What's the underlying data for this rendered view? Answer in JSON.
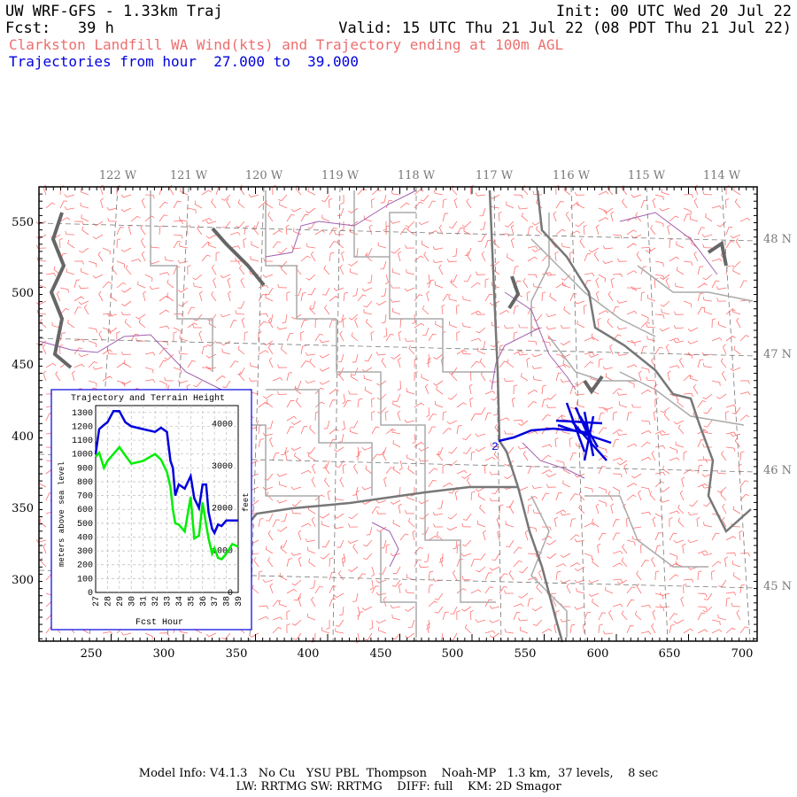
{
  "header": {
    "line1_left": "UW WRF-GFS - 1.33km Traj",
    "line1_right": "Init: 00 UTC Wed 20 Jul 22",
    "line2_left": "Fcst:   39 h",
    "line2_right": "Valid: 15 UTC Thu 21 Jul 22 (08 PDT Thu 21 Jul 22)",
    "line3": "Clarkston Landfill WA Wind(kts) and Trajectory ending at 100m AGL",
    "line4": "Trajectories from hour  27.000 to  39.000"
  },
  "colors": {
    "title_red": "#ee6e6e",
    "trajectory_blue": "#0000dd",
    "wind_barb": "#ff7070",
    "county": "#aaaaaa",
    "state": "#777777",
    "river": "#a060b0",
    "terrain_green": "#00ee00"
  },
  "map": {
    "top_lon_labels": [
      "122 W",
      "121 W",
      "120 W",
      "119 W",
      "118 W",
      "117 W",
      "116 W",
      "115 W",
      "114 W"
    ],
    "right_lat_labels": [
      "48 N",
      "47 N",
      "46 N",
      "45 N"
    ],
    "left_axis_labels": [
      "550",
      "500",
      "450",
      "400",
      "350",
      "300"
    ],
    "bottom_axis_labels": [
      "250",
      "300",
      "350",
      "400",
      "450",
      "500",
      "550",
      "600",
      "650",
      "700"
    ],
    "trajectory_marker": "2"
  },
  "inset": {
    "title": "Trajectory and Terrain Height",
    "xlabel": "Fcst Hour",
    "ylabel_left": "meters above sea level",
    "ylabel_right": "feet",
    "left_ticks": [
      "1300",
      "1200",
      "1100",
      "1000",
      "900",
      "800",
      "700",
      "600",
      "500",
      "400",
      "300",
      "200",
      "100",
      "0"
    ],
    "right_ticks": [
      "4000",
      "3000",
      "2000",
      "1000",
      "0"
    ],
    "x_ticks": [
      "27",
      "28",
      "29",
      "30",
      "31",
      "32",
      "33",
      "34",
      "35",
      "36",
      "37",
      "38",
      "39"
    ]
  },
  "chart_data": {
    "type": "line",
    "title": "Trajectory and Terrain Height",
    "xlabel": "Fcst Hour",
    "ylabel": "meters above sea level",
    "xlim": [
      27,
      39
    ],
    "ylim": [
      0,
      1350
    ],
    "series": [
      {
        "name": "trajectory",
        "color": "#0000dd",
        "x": [
          27,
          27.3,
          27.7,
          28,
          28.5,
          29,
          29.5,
          30,
          31,
          32,
          32.5,
          33,
          33.3,
          33.5,
          33.7,
          34,
          34.5,
          35,
          35.3,
          35.7,
          36,
          36.3,
          36.5,
          36.8,
          37,
          37.3,
          37.6,
          38,
          38.5,
          39
        ],
        "y": [
          1000,
          1180,
          1210,
          1230,
          1310,
          1310,
          1230,
          1200,
          1180,
          1160,
          1190,
          1160,
          950,
          900,
          700,
          780,
          750,
          840,
          680,
          610,
          780,
          780,
          580,
          460,
          430,
          490,
          480,
          520,
          520,
          520
        ]
      },
      {
        "name": "terrain",
        "color": "#00ee00",
        "x": [
          27,
          27.3,
          27.7,
          28,
          28.5,
          29,
          29.5,
          30,
          31,
          32,
          32.5,
          33,
          33.3,
          33.5,
          33.7,
          34,
          34.5,
          35,
          35.3,
          35.7,
          36,
          36.3,
          36.5,
          36.8,
          37,
          37.3,
          37.6,
          38,
          38.5,
          39
        ],
        "y": [
          980,
          1010,
          900,
          950,
          1000,
          1050,
          990,
          930,
          950,
          1000,
          960,
          870,
          760,
          600,
          500,
          490,
          440,
          690,
          390,
          410,
          650,
          490,
          390,
          280,
          320,
          250,
          240,
          280,
          350,
          330
        ]
      }
    ]
  },
  "footer": {
    "line1": "Model Info: V4.1.3   No Cu   YSU PBL  Thompson    Noah-MP   1.3 km,  37 levels,    8 sec",
    "line2": "LW: RRTMG SW: RRTMG    DIFF: full    KM: 2D Smagor"
  }
}
